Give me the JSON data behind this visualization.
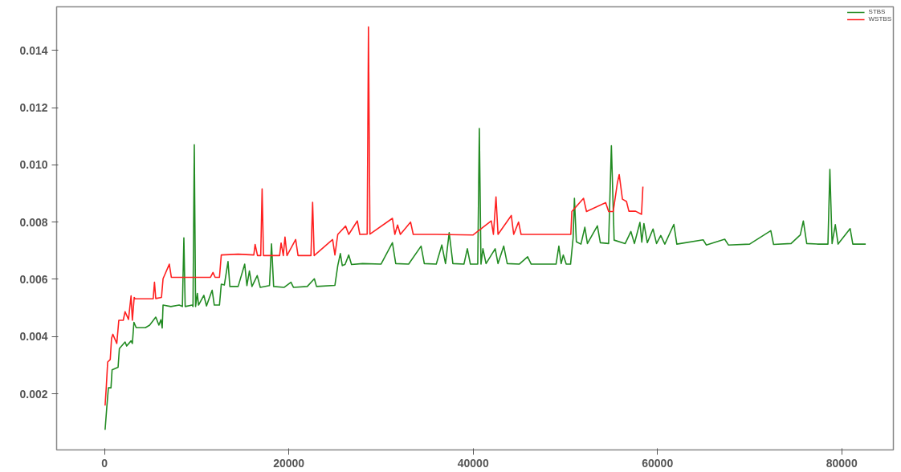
{
  "chart_data": {
    "type": "line",
    "xlim": [
      -5200,
      85600
    ],
    "ylim": [
      4e-05,
      0.01552
    ],
    "xticks": [
      0,
      20000,
      40000,
      60000,
      80000
    ],
    "yticks": [
      {
        "value": 0.002,
        "label": "0.002"
      },
      {
        "value": 0.004,
        "label": "0.004"
      },
      {
        "value": 0.006,
        "label": "0.006"
      },
      {
        "value": 0.008,
        "label": "0.008"
      },
      {
        "value": 0.01,
        "label": "0.010"
      },
      {
        "value": 0.012,
        "label": "0.012"
      },
      {
        "value": 0.014,
        "label": "0.014"
      }
    ],
    "grid": false,
    "legend": "top right",
    "marker": "none",
    "line_style": "solid",
    "series": [
      {
        "name": "STBS",
        "color": "#228b22",
        "x": [
          60,
          250,
          420,
          700,
          820,
          1470,
          1610,
          2230,
          2400,
          2880,
          3020,
          3190,
          3440,
          4430,
          4900,
          5560,
          5900,
          6120,
          6260,
          6350,
          7200,
          8100,
          8450,
          8610,
          8750,
          9510,
          9600,
          9740,
          9880,
          10070,
          10200,
          10780,
          11060,
          11680,
          11910,
          12470,
          12670,
          13000,
          13400,
          13600,
          14500,
          15210,
          15450,
          15720,
          16000,
          16570,
          16900,
          17900,
          18120,
          18350,
          19500,
          20230,
          20500,
          22000,
          22770,
          23000,
          25000,
          25310,
          25590,
          25800,
          26100,
          26500,
          26800,
          28000,
          30000,
          31240,
          31600,
          33000,
          34350,
          34700,
          36000,
          36600,
          37000,
          37400,
          37800,
          39000,
          39370,
          39700,
          40500,
          40670,
          40850,
          41060,
          41400,
          42390,
          42700,
          43320,
          43700,
          45000,
          45910,
          46300,
          49000,
          49300,
          49550,
          49780,
          50100,
          50570,
          50850,
          50990,
          51200,
          51700,
          52120,
          52400,
          53480,
          53800,
          54700,
          55000,
          55300,
          56500,
          57120,
          57500,
          58100,
          58300,
          58530,
          58900,
          59520,
          59900,
          60360,
          60800,
          61780,
          62100,
          64960,
          65300,
          67300,
          67700,
          70000,
          72300,
          72600,
          74500,
          75500,
          75830,
          76200,
          77500,
          78500,
          78710,
          78950,
          79300,
          79600,
          80910,
          81200,
          82600
        ],
        "values": [
          0.00074,
          0.00155,
          0.00221,
          0.00221,
          0.00284,
          0.00293,
          0.00358,
          0.00381,
          0.00367,
          0.00385,
          0.00376,
          0.0045,
          0.00431,
          0.00431,
          0.0044,
          0.00468,
          0.0044,
          0.00459,
          0.0043,
          0.0051,
          0.00505,
          0.0051,
          0.00505,
          0.00745,
          0.00505,
          0.0051,
          0.00505,
          0.0107,
          0.00505,
          0.00551,
          0.0051,
          0.00544,
          0.00507,
          0.00562,
          0.0051,
          0.0051,
          0.00583,
          0.0058,
          0.00662,
          0.00575,
          0.00575,
          0.00653,
          0.00578,
          0.00629,
          0.00575,
          0.00613,
          0.00572,
          0.00578,
          0.00724,
          0.00575,
          0.00572,
          0.0059,
          0.00572,
          0.00575,
          0.00602,
          0.00575,
          0.00579,
          0.00648,
          0.0069,
          0.00648,
          0.00652,
          0.00685,
          0.00652,
          0.00655,
          0.00653,
          0.00728,
          0.00655,
          0.00653,
          0.00716,
          0.00655,
          0.00653,
          0.0072,
          0.00655,
          0.00763,
          0.00655,
          0.00653,
          0.00707,
          0.00653,
          0.00653,
          0.01127,
          0.00653,
          0.00707,
          0.00655,
          0.00707,
          0.00655,
          0.00716,
          0.00655,
          0.00653,
          0.00679,
          0.00653,
          0.00653,
          0.00716,
          0.00655,
          0.00685,
          0.00653,
          0.00653,
          0.00745,
          0.00883,
          0.00731,
          0.00723,
          0.00782,
          0.00725,
          0.00787,
          0.00728,
          0.00725,
          0.01067,
          0.00737,
          0.00725,
          0.00767,
          0.00725,
          0.00799,
          0.0073,
          0.00795,
          0.00728,
          0.00776,
          0.00725,
          0.00753,
          0.00723,
          0.00792,
          0.00723,
          0.00738,
          0.0072,
          0.0074,
          0.0072,
          0.00723,
          0.0077,
          0.00722,
          0.00725,
          0.00755,
          0.00804,
          0.00725,
          0.00723,
          0.00723,
          0.00984,
          0.00725,
          0.00791,
          0.00723,
          0.00777,
          0.00723,
          0.00723
        ]
      },
      {
        "name": "WSTBS",
        "color": "#ff2020",
        "x": [
          60,
          200,
          340,
          620,
          760,
          900,
          1330,
          1550,
          2030,
          2230,
          2600,
          2880,
          3020,
          3220,
          3300,
          5280,
          5420,
          5560,
          6180,
          6350,
          7030,
          7250,
          9500,
          11500,
          11770,
          12000,
          12470,
          12670,
          14500,
          16200,
          16340,
          16600,
          16950,
          17100,
          17250,
          19000,
          19160,
          19400,
          19580,
          19800,
          20740,
          21000,
          22400,
          22580,
          22750,
          24750,
          25000,
          25310,
          26160,
          26500,
          27430,
          27700,
          28500,
          28640,
          28800,
          31240,
          31500,
          31800,
          32100,
          33210,
          33500,
          36000,
          40000,
          41970,
          42200,
          42480,
          42700,
          44140,
          44400,
          44930,
          45200,
          48000,
          50600,
          50710,
          51980,
          52300,
          54380,
          54700,
          55200,
          55650,
          55850,
          56200,
          56640,
          56900,
          57630,
          58270,
          58420
        ],
        "values": [
          0.00159,
          0.00229,
          0.00311,
          0.0032,
          0.00394,
          0.00408,
          0.00376,
          0.00457,
          0.00457,
          0.00487,
          0.0046,
          0.00542,
          0.00457,
          0.00537,
          0.00532,
          0.00532,
          0.0059,
          0.00533,
          0.00537,
          0.00602,
          0.00653,
          0.00607,
          0.00607,
          0.00607,
          0.00624,
          0.00607,
          0.00607,
          0.00685,
          0.00688,
          0.00685,
          0.00722,
          0.00683,
          0.00683,
          0.00916,
          0.00683,
          0.00683,
          0.00727,
          0.00683,
          0.00748,
          0.00683,
          0.00739,
          0.00683,
          0.00683,
          0.00869,
          0.00683,
          0.00739,
          0.00685,
          0.00757,
          0.00786,
          0.00757,
          0.00804,
          0.00757,
          0.00758,
          0.01482,
          0.00758,
          0.00813,
          0.00757,
          0.0079,
          0.00757,
          0.008,
          0.00757,
          0.00757,
          0.00755,
          0.00804,
          0.00757,
          0.00888,
          0.00757,
          0.00823,
          0.00757,
          0.008,
          0.00757,
          0.00757,
          0.00757,
          0.00837,
          0.00883,
          0.00837,
          0.00868,
          0.00837,
          0.00837,
          0.00937,
          0.00966,
          0.0088,
          0.00872,
          0.00838,
          0.00838,
          0.00827,
          0.00924
        ]
      }
    ]
  }
}
